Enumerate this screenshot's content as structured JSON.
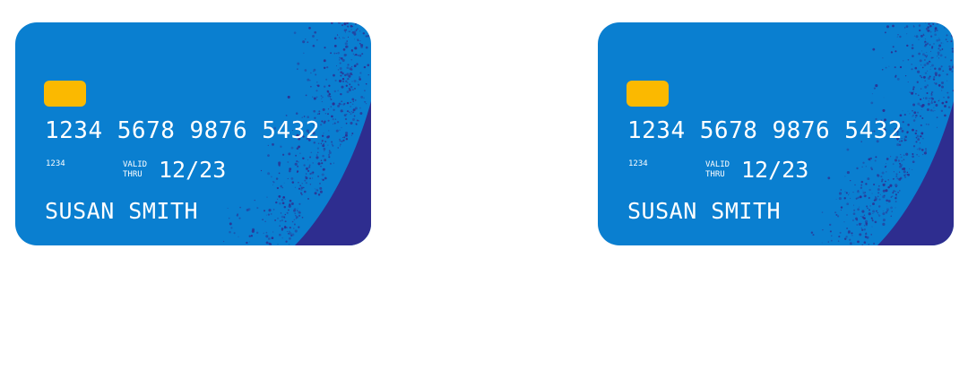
{
  "cards": [
    {
      "number": "1234 5678 9876 5432",
      "short_number": "1234",
      "valid_line1": "VALID",
      "valid_line2": "THRU",
      "expiry": "12/23",
      "holder": "SUSAN SMITH"
    },
    {
      "number": "1234 5678 9876 5432",
      "short_number": "1234",
      "valid_line1": "VALID",
      "valid_line2": "THRU",
      "expiry": "12/23",
      "holder": "SUSAN SMITH"
    }
  ],
  "colors": {
    "card_blue": "#0a7fd0",
    "card_accent": "#2e2d8f",
    "chip": "#fbb900",
    "text": "#ffffff",
    "background": "#ffffff"
  }
}
